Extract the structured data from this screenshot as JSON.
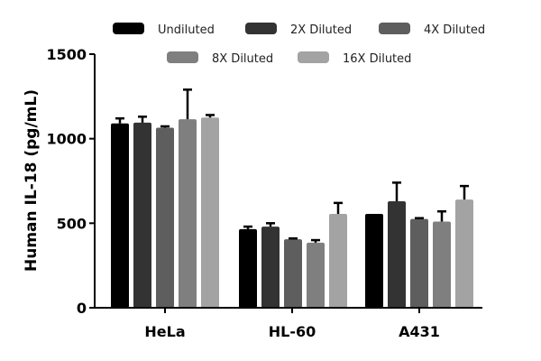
{
  "chart_data": {
    "type": "bar",
    "title": "",
    "xlabel": "",
    "ylabel": "Human IL-18 (pg/mL)",
    "ylim": [
      0,
      1500
    ],
    "yticks": [
      0,
      500,
      1000,
      1500
    ],
    "categories": [
      "HeLa",
      "HL-60",
      "A431"
    ],
    "legend_position": "top",
    "grid": false,
    "series": [
      {
        "name": "Undiluted",
        "color": "#000000",
        "values": [
          1090,
          465,
          555
        ],
        "errors": [
          30,
          15,
          0
        ]
      },
      {
        "name": "2X Diluted",
        "color": "#333333",
        "values": [
          1095,
          480,
          630
        ],
        "errors": [
          35,
          20,
          110
        ]
      },
      {
        "name": "4X Diluted",
        "color": "#5e5e5e",
        "values": [
          1065,
          405,
          525
        ],
        "errors": [
          8,
          5,
          5
        ]
      },
      {
        "name": "8X Diluted",
        "color": "#7f7f7f",
        "values": [
          1115,
          385,
          510
        ],
        "errors": [
          175,
          15,
          60
        ]
      },
      {
        "name": "16X Diluted",
        "color": "#a3a3a3",
        "values": [
          1125,
          555,
          640
        ],
        "errors": [
          15,
          65,
          80
        ]
      }
    ]
  }
}
